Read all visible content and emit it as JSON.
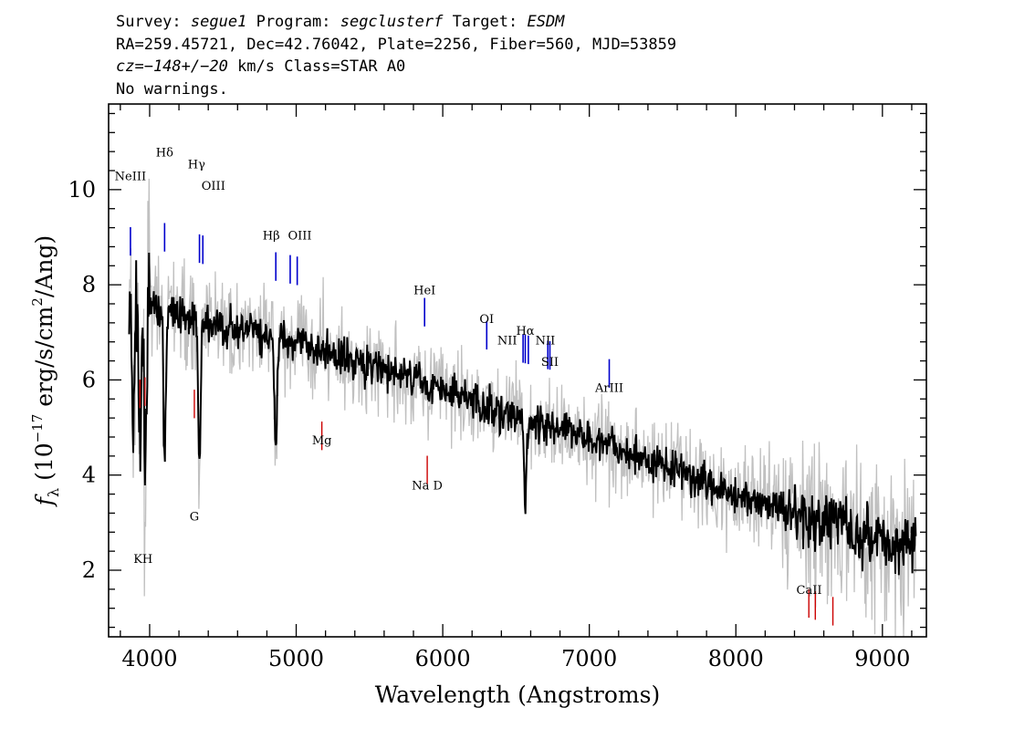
{
  "header": {
    "survey_label": "Survey:",
    "survey": "segue1",
    "program_label": "Program:",
    "program": "segclusterf",
    "target_label": "Target:",
    "target": "ESDM",
    "line2": "RA=259.45721, Dec=42.76042, Plate=2256, Fiber=560, MJD=53859",
    "cz_value": "cz=−148+/−20",
    "cz_rest": " km/s Class=STAR A0",
    "line4": "No warnings."
  },
  "chart_data": {
    "type": "line",
    "title": "",
    "xlabel": "Wavelength (Angstroms)",
    "ylabel": "f_λ (10^-17 erg/s/cm^2/Ang)",
    "ylabel_parts": {
      "f": "f",
      "lambda": "λ",
      "open": " (10",
      "exp": "−17",
      "mid": " erg/s/cm",
      "exp2": "2",
      "close": "/Ang)"
    },
    "xlim": [
      3720,
      9300
    ],
    "ylim": [
      0.6,
      11.8
    ],
    "xticks": [
      4000,
      5000,
      6000,
      7000,
      8000,
      9000
    ],
    "yticks": [
      2,
      4,
      6,
      8,
      10
    ],
    "grid": false,
    "flux_color": "#000000",
    "noise_color": "#c0c0c0",
    "continuum_anchors": [
      [
        3860,
        7.4
      ],
      [
        4000,
        7.6
      ],
      [
        4500,
        7.1
      ],
      [
        5000,
        6.8
      ],
      [
        5500,
        6.3
      ],
      [
        6000,
        5.8
      ],
      [
        6500,
        5.2
      ],
      [
        7000,
        4.8
      ],
      [
        7500,
        4.2
      ],
      [
        8000,
        3.6
      ],
      [
        8500,
        3.1
      ],
      [
        9000,
        2.6
      ],
      [
        9230,
        2.5
      ]
    ],
    "absorption_features": [
      {
        "x": 3889,
        "depth": 2.6
      },
      {
        "x": 3935,
        "depth": 3.4
      },
      {
        "x": 3970,
        "depth": 3.8
      },
      {
        "x": 4102,
        "depth": 3.2
      },
      {
        "x": 4340,
        "depth": 3.3
      },
      {
        "x": 4861,
        "depth": 2.3
      },
      {
        "x": 6563,
        "depth": 1.9
      }
    ],
    "emission_lines": [
      {
        "label": "NeIII",
        "x": 3869,
        "color": "#0000cc"
      },
      {
        "label": "Hδ",
        "x": 4102,
        "color": "#0000cc"
      },
      {
        "label": "Hγ",
        "x": 4340,
        "color": "#0000cc"
      },
      {
        "label": "OIII",
        "x": 4363,
        "color": "#0000cc"
      },
      {
        "label": "Hβ",
        "x": 4861,
        "color": "#0000cc"
      },
      {
        "label": "OIII",
        "x": 4959,
        "color": "#0000cc"
      },
      {
        "label": "OIII",
        "x": 5007,
        "color": "#0000cc"
      },
      {
        "label": "HeI",
        "x": 5876,
        "color": "#0000cc"
      },
      {
        "label": "OI",
        "x": 6300,
        "color": "#0000cc"
      },
      {
        "label": "NII",
        "x": 6548,
        "color": "#0000cc"
      },
      {
        "label": "Hα",
        "x": 6563,
        "color": "#0000cc"
      },
      {
        "label": "NII",
        "x": 6584,
        "color": "#0000cc"
      },
      {
        "label": "SII",
        "x": 6717,
        "color": "#0000cc"
      },
      {
        "label": "SII",
        "x": 6731,
        "color": "#0000cc"
      },
      {
        "label": "ArIII",
        "x": 7136,
        "color": "#0000cc"
      }
    ],
    "absorption_lines": [
      {
        "label": "K",
        "x": 3934,
        "color": "#cc0000"
      },
      {
        "label": "H",
        "x": 3968,
        "color": "#cc0000"
      },
      {
        "label": "G",
        "x": 4305,
        "color": "#cc0000"
      },
      {
        "label": "Mg",
        "x": 5175,
        "color": "#cc0000"
      },
      {
        "label": "Na D",
        "x": 5894,
        "color": "#cc0000"
      },
      {
        "label": "CaII",
        "x": 8498,
        "color": "#cc0000"
      },
      {
        "label": "CaII",
        "x": 8542,
        "color": "#cc0000"
      },
      {
        "label": "CaII",
        "x": 8662,
        "color": "#cc0000"
      }
    ],
    "text_labels": [
      {
        "text": "NeIII",
        "x": 3869,
        "y": 10.2
      },
      {
        "text": "Hδ",
        "x": 4102,
        "y": 10.7
      },
      {
        "text": "Hγ",
        "x": 4320,
        "y": 10.45
      },
      {
        "text": "OIII",
        "x": 4435,
        "y": 10.0
      },
      {
        "text": "Hβ",
        "x": 4830,
        "y": 8.95
      },
      {
        "text": "OIII",
        "x": 5025,
        "y": 8.95
      },
      {
        "text": "HeI",
        "x": 5876,
        "y": 7.8
      },
      {
        "text": "OI",
        "x": 6300,
        "y": 7.2
      },
      {
        "text": "NII",
        "x": 6440,
        "y": 6.75
      },
      {
        "text": "Hα",
        "x": 6563,
        "y": 6.95
      },
      {
        "text": "NII",
        "x": 6700,
        "y": 6.75
      },
      {
        "text": "SII",
        "x": 6731,
        "y": 6.3
      },
      {
        "text": "ArIII",
        "x": 7136,
        "y": 5.75
      },
      {
        "text": "KH",
        "x": 3955,
        "y": 2.15
      },
      {
        "text": "G",
        "x": 4305,
        "y": 3.05
      },
      {
        "text": "Mg",
        "x": 5175,
        "y": 4.65
      },
      {
        "text": "Na D",
        "x": 5894,
        "y": 3.7
      },
      {
        "text": "CaII",
        "x": 8500,
        "y": 1.5
      }
    ]
  }
}
